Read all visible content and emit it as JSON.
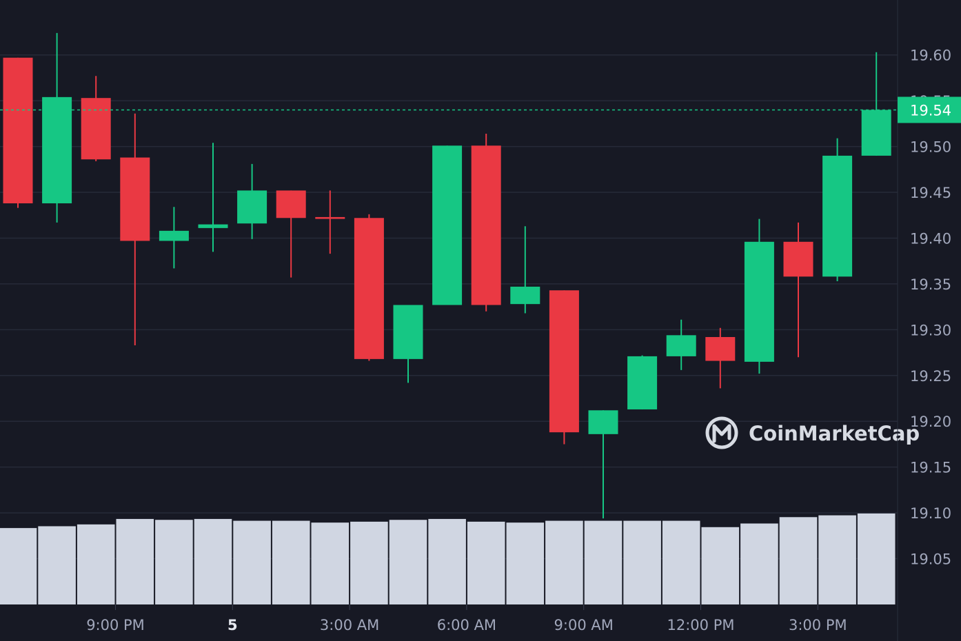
{
  "watermark": {
    "brand": "CoinMarketCap"
  },
  "colors": {
    "background": "#171924",
    "grid": "#262a38",
    "up": "#16c784",
    "down": "#ea3943",
    "volume": "#d0d6e2",
    "axis_text": "#a1a7bb"
  },
  "chart_data": {
    "type": "candlestick",
    "price_axis": {
      "ticks": [
        "19.60",
        "19.55",
        "19.50",
        "19.45",
        "19.40",
        "19.35",
        "19.30",
        "19.25",
        "19.20",
        "19.15",
        "19.10",
        "19.05"
      ],
      "range": [
        19.0,
        19.66
      ],
      "position": "right"
    },
    "time_axis": {
      "labels": [
        {
          "text": "9:00 PM",
          "candle": 2.5
        },
        {
          "text": "5",
          "candle": 5.5,
          "bold": true
        },
        {
          "text": "3:00 AM",
          "candle": 8.5
        },
        {
          "text": "6:00 AM",
          "candle": 11.5
        },
        {
          "text": "9:00 AM",
          "candle": 14.5
        },
        {
          "text": "12:00 PM",
          "candle": 17.5
        },
        {
          "text": "3:00 PM",
          "candle": 20.5
        }
      ]
    },
    "current_price": "19.54",
    "grid": true,
    "candles": [
      {
        "o": 19.597,
        "h": 19.597,
        "l": 19.433,
        "c": 19.438,
        "v": 0.84
      },
      {
        "o": 19.438,
        "h": 19.624,
        "l": 19.417,
        "c": 19.554,
        "v": 0.86
      },
      {
        "o": 19.553,
        "h": 19.577,
        "l": 19.484,
        "c": 19.486,
        "v": 0.88
      },
      {
        "o": 19.488,
        "h": 19.536,
        "l": 19.283,
        "c": 19.397,
        "v": 0.94
      },
      {
        "o": 19.397,
        "h": 19.434,
        "l": 19.367,
        "c": 19.408,
        "v": 0.93
      },
      {
        "o": 19.411,
        "h": 19.504,
        "l": 19.385,
        "c": 19.415,
        "v": 0.94
      },
      {
        "o": 19.416,
        "h": 19.481,
        "l": 19.399,
        "c": 19.452,
        "v": 0.92
      },
      {
        "o": 19.452,
        "h": 19.452,
        "l": 19.357,
        "c": 19.422,
        "v": 0.92
      },
      {
        "o": 19.423,
        "h": 19.452,
        "l": 19.383,
        "c": 19.421,
        "v": 0.9
      },
      {
        "o": 19.422,
        "h": 19.426,
        "l": 19.266,
        "c": 19.268,
        "v": 0.91
      },
      {
        "o": 19.268,
        "h": 19.326,
        "l": 19.242,
        "c": 19.327,
        "v": 0.93
      },
      {
        "o": 19.327,
        "h": 19.501,
        "l": 19.327,
        "c": 19.501,
        "v": 0.94
      },
      {
        "o": 19.501,
        "h": 19.514,
        "l": 19.32,
        "c": 19.327,
        "v": 0.91
      },
      {
        "o": 19.328,
        "h": 19.413,
        "l": 19.318,
        "c": 19.347,
        "v": 0.9
      },
      {
        "o": 19.343,
        "h": 19.343,
        "l": 19.175,
        "c": 19.188,
        "v": 0.92
      },
      {
        "o": 19.186,
        "h": 19.212,
        "l": 19.094,
        "c": 19.212,
        "v": 0.92
      },
      {
        "o": 19.213,
        "h": 19.272,
        "l": 19.213,
        "c": 19.271,
        "v": 0.92
      },
      {
        "o": 19.271,
        "h": 19.311,
        "l": 19.256,
        "c": 19.294,
        "v": 0.92
      },
      {
        "o": 19.292,
        "h": 19.302,
        "l": 19.236,
        "c": 19.266,
        "v": 0.85
      },
      {
        "o": 19.265,
        "h": 19.421,
        "l": 19.252,
        "c": 19.396,
        "v": 0.89
      },
      {
        "o": 19.396,
        "h": 19.417,
        "l": 19.27,
        "c": 19.358,
        "v": 0.96
      },
      {
        "o": 19.358,
        "h": 19.509,
        "l": 19.353,
        "c": 19.49,
        "v": 0.98
      },
      {
        "o": 19.49,
        "h": 19.603,
        "l": 19.49,
        "c": 19.54,
        "v": 1.0
      }
    ]
  }
}
